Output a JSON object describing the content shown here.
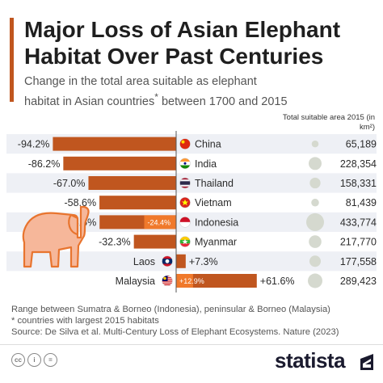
{
  "header": {
    "title": "Major Loss of Asian Elephant Habitat Over Past Centuries",
    "subtitle_pre": "Change in the total area suitable as elephant habitat in Asian countries",
    "subtitle_mark": "*",
    "subtitle_post": " between 1700 and 2015",
    "column_header": "Total suitable area 2015 (in km²)"
  },
  "chart_data": {
    "type": "bar",
    "categories": [
      "China",
      "India",
      "Thailand",
      "Vietnam",
      "Indonesia",
      "Myanmar",
      "Laos",
      "Malaysia"
    ],
    "series": [
      {
        "values": [
          -94.2,
          -86.2,
          -67.0,
          -58.6,
          -58.5,
          -32.3,
          7.3,
          61.6
        ]
      },
      {
        "values": [
          null,
          null,
          null,
          null,
          -24.4,
          null,
          null,
          12.9
        ]
      }
    ],
    "value_labels": [
      "-94.2%",
      "-86.2%",
      "-67.0%",
      "-58.6%",
      "-58.5%",
      "-32.3%",
      "+7.3%",
      "+61.6%"
    ],
    "sub_labels": [
      "",
      "",
      "",
      "",
      "-24.4%",
      "",
      "",
      "+12.9%"
    ],
    "area_2015_km2": [
      65189,
      228354,
      158331,
      81439,
      433774,
      217770,
      177558,
      289423
    ],
    "area_labels": [
      "65,189",
      "228,354",
      "158,331",
      "81,439",
      "433,774",
      "217,770",
      "177,558",
      "289,423"
    ],
    "colors": {
      "main": "#c0561f",
      "sub": "#f0792b",
      "bubble": "#d5d9cf",
      "row_band": "#eef0f5"
    },
    "flag_icons": [
      "china-flag-icon",
      "india-flag-icon",
      "thailand-flag-icon",
      "vietnam-flag-icon",
      "indonesia-flag-icon",
      "myanmar-flag-icon",
      "laos-flag-icon",
      "malaysia-flag-icon"
    ]
  },
  "notes": {
    "line1": "Range between Sumatra & Borneo (Indonesia), peninsular & Borneo (Malaysia)",
    "line2": "* countries with largest 2015 habitats",
    "source": "Source: De Silva et al. Multi-Century Loss of Elephant Ecosystems. Nature (2023)"
  },
  "footer": {
    "brand": "statista"
  }
}
